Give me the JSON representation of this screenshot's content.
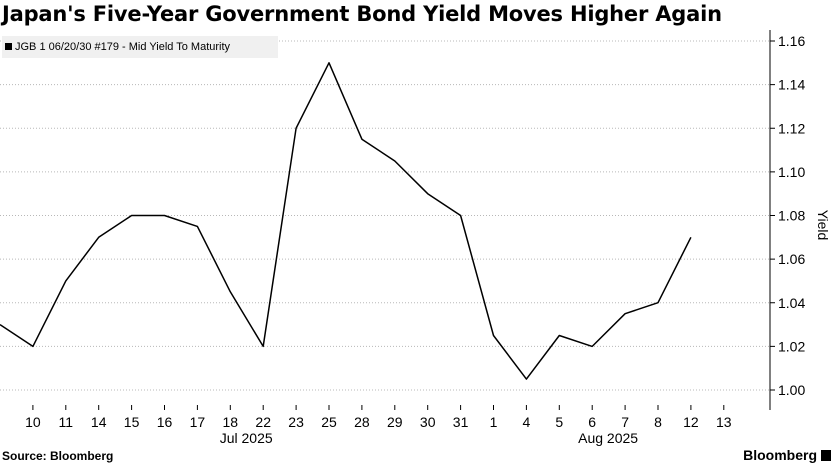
{
  "title": "Japan's Five-Year Government Bond Yield Moves Higher Again",
  "legend_label": "JGB 1 06/20/30 #179 - Mid Yield To Maturity",
  "source": "Source: Bloomberg",
  "brand": "Bloomberg",
  "chart_data": {
    "type": "line",
    "title": "Japan's Five-Year Government Bond Yield Moves Higher Again",
    "xlabel": "",
    "ylabel": "Yield",
    "x_tick_labels": [
      "10",
      "11",
      "14",
      "15",
      "16",
      "17",
      "18",
      "22",
      "23",
      "25",
      "28",
      "29",
      "30",
      "31",
      "1",
      "4",
      "5",
      "6",
      "7",
      "8",
      "12",
      "13"
    ],
    "month_labels": [
      {
        "label": "Jul 2025",
        "at_index": 7
      },
      {
        "label": "Aug 2025",
        "at_index": 18
      }
    ],
    "y_ticks": [
      1.0,
      1.02,
      1.04,
      1.06,
      1.08,
      1.1,
      1.12,
      1.14,
      1.16
    ],
    "ylim": [
      0.995,
      1.16
    ],
    "y_axis_side": "right",
    "grid": "horizontal dotted",
    "legend_placement": "top-left",
    "series": [
      {
        "name": "JGB 1 06/20/30 #179 - Mid Yield To Maturity",
        "color": "#000000",
        "values": [
          1.03,
          1.02,
          1.05,
          1.07,
          1.08,
          1.08,
          1.075,
          1.045,
          1.02,
          1.12,
          1.15,
          1.115,
          1.105,
          1.09,
          1.08,
          1.025,
          1.005,
          1.025,
          1.02,
          1.035,
          1.04,
          1.07
        ]
      }
    ],
    "x_index_offset": -1
  }
}
